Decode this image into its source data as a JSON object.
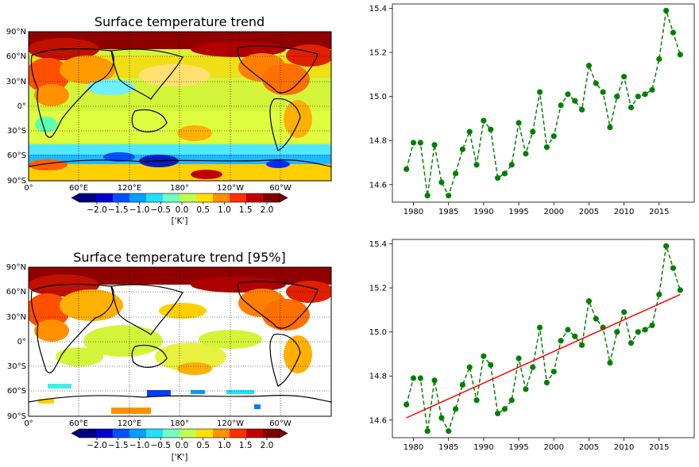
{
  "maps": [
    {
      "title": "Surface temperature trend",
      "lat_ticks": [
        "90°N",
        "60°N",
        "30°N",
        "0°",
        "30°S",
        "60°S",
        "90°S"
      ],
      "lon_ticks": [
        "0°",
        "60°E",
        "120°E",
        "180°",
        "120°W",
        "60°W"
      ],
      "colorbar_ticks": [
        "−2.0",
        "−1.5",
        "−1.0",
        "−0.5",
        "0.0",
        "0.5",
        "1.0",
        "1.5",
        "2.0"
      ],
      "colorbar_label": "['K']"
    },
    {
      "title": "Surface temperature trend [95%]",
      "lat_ticks": [
        "90°N",
        "60°N",
        "30°N",
        "0°",
        "30°S",
        "60°S",
        "90°S"
      ],
      "lon_ticks": [
        "0°",
        "60°E",
        "120°E",
        "180°",
        "120°W",
        "60°W"
      ],
      "colorbar_ticks": [
        "−2.0",
        "−1.5",
        "−1.0",
        "−0.5",
        "0.0",
        "0.5",
        "1.0",
        "1.5",
        "2.0"
      ],
      "colorbar_label": "['K']"
    }
  ],
  "colors": {
    "series": "#008000",
    "trend": "#ff0000",
    "colormap": [
      "#000080",
      "#0000d0",
      "#0050ff",
      "#00a0ff",
      "#20e0ff",
      "#70ffc0",
      "#c0ff50",
      "#ffe000",
      "#ff9000",
      "#ff3000",
      "#c00000",
      "#800000"
    ]
  },
  "chart_data": [
    {
      "type": "line",
      "x": [
        1979,
        1980,
        1981,
        1982,
        1983,
        1984,
        1985,
        1986,
        1987,
        1988,
        1989,
        1990,
        1991,
        1992,
        1993,
        1994,
        1995,
        1996,
        1997,
        1998,
        1999,
        2000,
        2001,
        2002,
        2003,
        2004,
        2005,
        2006,
        2007,
        2008,
        2009,
        2010,
        2011,
        2012,
        2013,
        2014,
        2015,
        2016,
        2017,
        2018
      ],
      "series": [
        {
          "values": [
            14.67,
            14.79,
            14.79,
            14.55,
            14.78,
            14.61,
            14.55,
            14.65,
            14.76,
            14.84,
            14.69,
            14.89,
            14.85,
            14.63,
            14.65,
            14.69,
            14.88,
            14.74,
            14.84,
            15.02,
            14.77,
            14.82,
            14.96,
            15.01,
            14.98,
            14.94,
            15.14,
            15.06,
            15.02,
            14.86,
            15.0,
            15.09,
            14.95,
            15.0,
            15.01,
            15.03,
            15.17,
            15.39,
            15.29,
            15.19
          ],
          "style": "dashed line with circle markers",
          "color": "#008000"
        }
      ],
      "x_ticks": [
        "1980",
        "1985",
        "1990",
        "1995",
        "2000",
        "2005",
        "2010",
        "2015"
      ],
      "y_ticks": [
        "14.6",
        "14.8",
        "15.0",
        "15.2",
        "15.4"
      ],
      "xlim": [
        1977,
        2020
      ],
      "ylim": [
        14.52,
        15.42
      ],
      "grid": false
    },
    {
      "type": "line",
      "x": [
        1979,
        1980,
        1981,
        1982,
        1983,
        1984,
        1985,
        1986,
        1987,
        1988,
        1989,
        1990,
        1991,
        1992,
        1993,
        1994,
        1995,
        1996,
        1997,
        1998,
        1999,
        2000,
        2001,
        2002,
        2003,
        2004,
        2005,
        2006,
        2007,
        2008,
        2009,
        2010,
        2011,
        2012,
        2013,
        2014,
        2015,
        2016,
        2017,
        2018
      ],
      "series": [
        {
          "values": [
            14.67,
            14.79,
            14.79,
            14.55,
            14.78,
            14.61,
            14.55,
            14.65,
            14.76,
            14.84,
            14.69,
            14.89,
            14.85,
            14.63,
            14.65,
            14.69,
            14.88,
            14.74,
            14.84,
            15.02,
            14.77,
            14.82,
            14.96,
            15.01,
            14.98,
            14.94,
            15.14,
            15.06,
            15.02,
            14.86,
            15.0,
            15.09,
            14.95,
            15.0,
            15.01,
            15.03,
            15.17,
            15.39,
            15.29,
            15.19
          ],
          "style": "dashed line with circle markers",
          "color": "#008000"
        },
        {
          "values_at_endpoints": [
            14.61,
            15.17
          ],
          "x_endpoints": [
            1979,
            2018
          ],
          "style": "solid linear trend line",
          "color": "#ff0000"
        }
      ],
      "x_ticks": [
        "1980",
        "1985",
        "1990",
        "1995",
        "2000",
        "2005",
        "2010",
        "2015"
      ],
      "y_ticks": [
        "14.6",
        "14.8",
        "15.0",
        "15.2",
        "15.4"
      ],
      "xlim": [
        1977,
        2020
      ],
      "ylim": [
        14.52,
        15.42
      ],
      "grid": false
    }
  ]
}
